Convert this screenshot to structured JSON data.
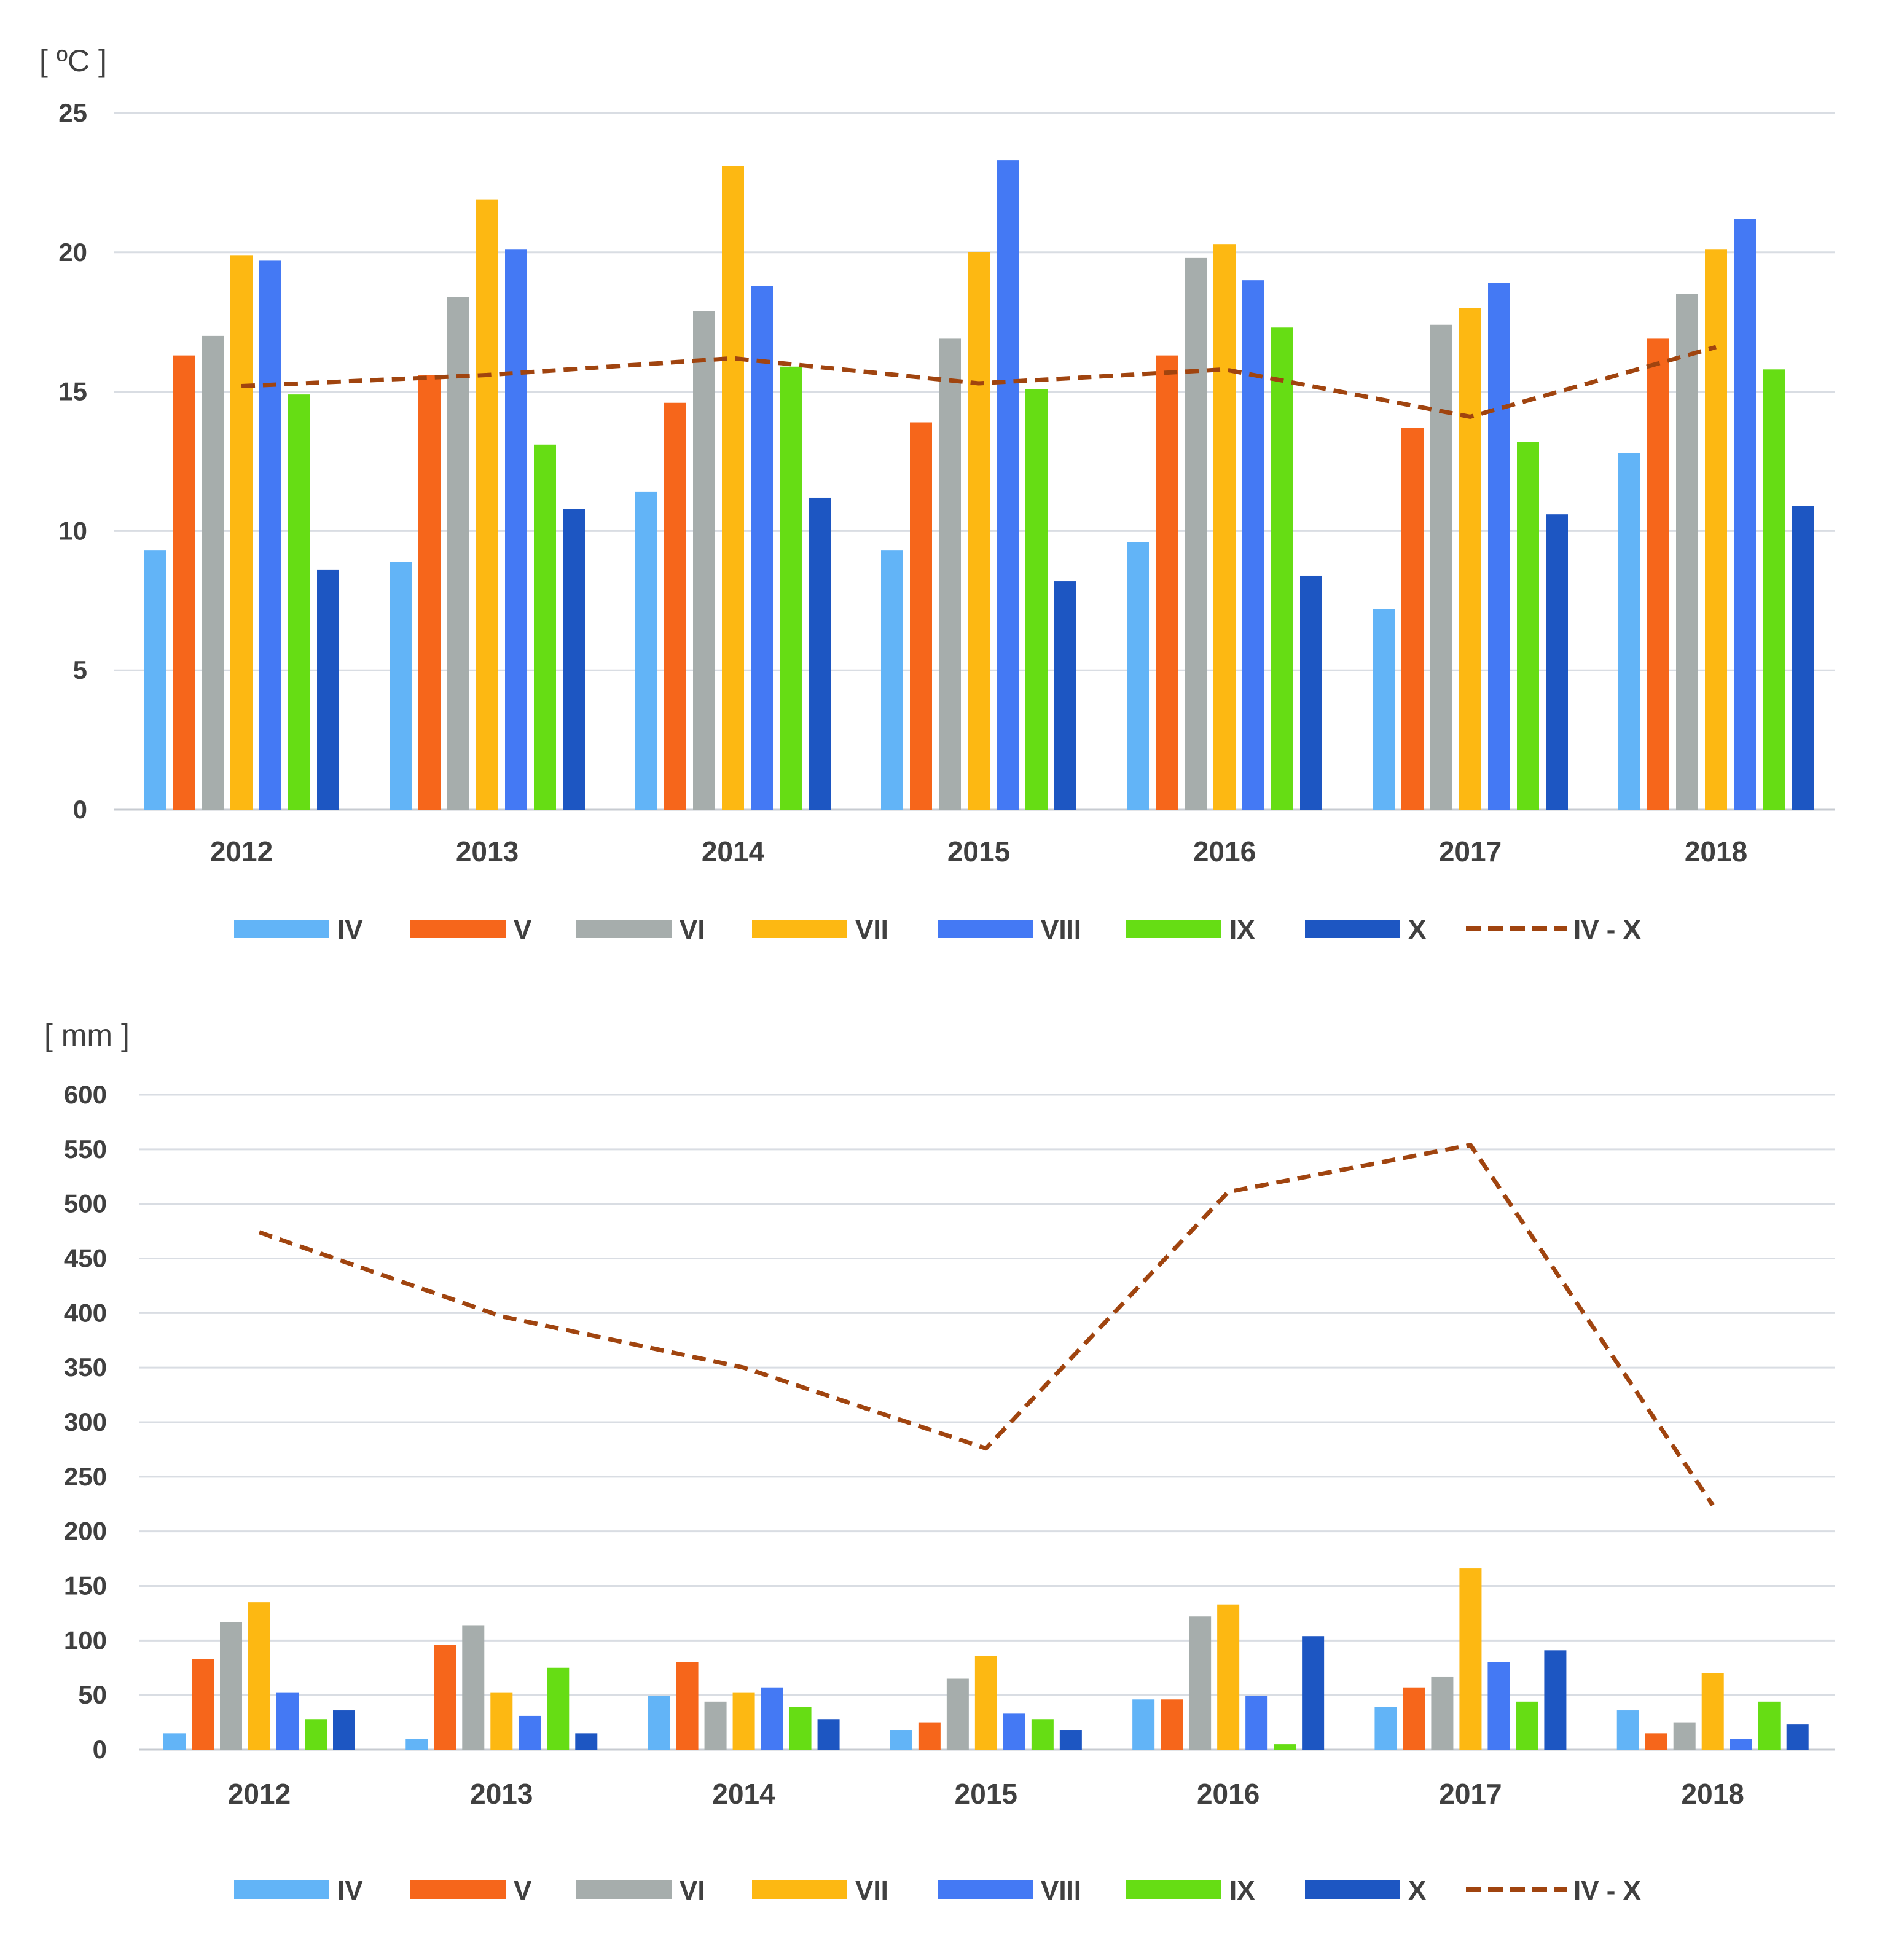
{
  "colors": {
    "IV": "#62b4f7",
    "V": "#f6661b",
    "VI": "#a6adac",
    "VII": "#fdb812",
    "VIII": "#4479f4",
    "IX": "#66dd14",
    "X": "#1d56c2",
    "IV - X": "#a0440f",
    "grid": "#d9dde3",
    "axis": "#c7cbd1"
  },
  "chart_data": [
    {
      "type": "bar",
      "unit_label": "[ ºC ]",
      "categories": [
        "2012",
        "2013",
        "2014",
        "2015",
        "2016",
        "2017",
        "2018"
      ],
      "ylim": [
        0,
        25
      ],
      "yticks": [
        0,
        5,
        10,
        15,
        20,
        25
      ],
      "grid": true,
      "legend_position": "bottom",
      "series": [
        {
          "name": "IV",
          "values": [
            9.3,
            8.9,
            11.4,
            9.3,
            9.6,
            7.2,
            12.8
          ]
        },
        {
          "name": "V",
          "values": [
            16.3,
            15.6,
            14.6,
            13.9,
            16.3,
            13.7,
            16.9
          ]
        },
        {
          "name": "VI",
          "values": [
            17.0,
            18.4,
            17.9,
            16.9,
            19.8,
            17.4,
            18.5
          ]
        },
        {
          "name": "VII",
          "values": [
            19.9,
            21.9,
            23.1,
            20.0,
            20.3,
            18.0,
            20.1
          ]
        },
        {
          "name": "VIII",
          "values": [
            19.7,
            20.1,
            18.8,
            23.3,
            19.0,
            18.9,
            21.2
          ]
        },
        {
          "name": "IX",
          "values": [
            14.9,
            13.1,
            15.9,
            15.1,
            17.3,
            13.2,
            15.8
          ]
        },
        {
          "name": "X",
          "values": [
            8.6,
            10.8,
            11.2,
            8.2,
            8.4,
            10.6,
            10.9
          ]
        }
      ],
      "line_series": {
        "name": "IV - X",
        "style": "dashed",
        "values": [
          15.2,
          15.6,
          16.2,
          15.3,
          15.8,
          14.1,
          16.6
        ]
      }
    },
    {
      "type": "bar",
      "unit_label": "[ mm ]",
      "categories": [
        "2012",
        "2013",
        "2014",
        "2015",
        "2016",
        "2017",
        "2018"
      ],
      "ylim": [
        0,
        600
      ],
      "yticks": [
        0,
        50,
        100,
        150,
        200,
        250,
        300,
        350,
        400,
        450,
        500,
        550,
        600
      ],
      "grid": true,
      "legend_position": "bottom",
      "series": [
        {
          "name": "IV",
          "values": [
            15,
            10,
            49,
            18,
            46,
            39,
            36
          ]
        },
        {
          "name": "V",
          "values": [
            83,
            96,
            80,
            25,
            46,
            57,
            15
          ]
        },
        {
          "name": "VI",
          "values": [
            117,
            114,
            44,
            65,
            122,
            67,
            25
          ]
        },
        {
          "name": "VII",
          "values": [
            135,
            52,
            52,
            86,
            133,
            166,
            70
          ]
        },
        {
          "name": "VIII",
          "values": [
            52,
            31,
            57,
            33,
            49,
            80,
            10
          ]
        },
        {
          "name": "IX",
          "values": [
            28,
            75,
            39,
            28,
            5,
            44,
            44
          ]
        },
        {
          "name": "X",
          "values": [
            36,
            15,
            28,
            18,
            104,
            91,
            23
          ]
        }
      ],
      "line_series": {
        "name": "IV - X",
        "style": "dashed",
        "values": [
          474,
          397,
          350,
          276,
          511,
          554,
          224
        ]
      }
    }
  ]
}
